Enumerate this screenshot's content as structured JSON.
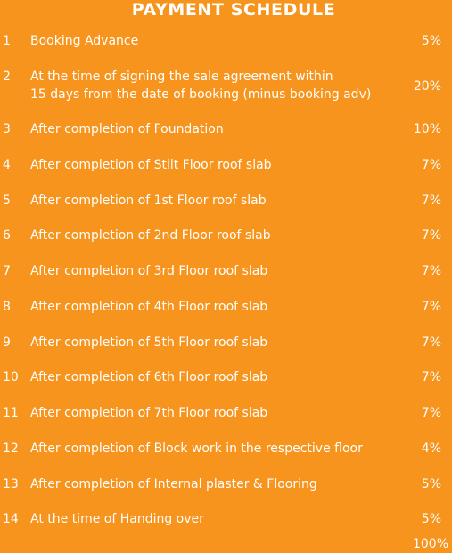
{
  "title": "PAYMENT SCHEDULE",
  "items": [
    {
      "num": "1",
      "lines": [
        "Booking Advance"
      ],
      "pct": "5%"
    },
    {
      "num": "2",
      "lines": [
        "At the time of signing the sale agreement  within",
        "15 days from the date of booking  (minus booking adv)"
      ],
      "pct": "20%"
    },
    {
      "num": "3",
      "lines": [
        "After completion of Foundation"
      ],
      "pct": "10%"
    },
    {
      "num": "4",
      "lines": [
        "After completion of Stilt Floor roof slab"
      ],
      "pct": "7%"
    },
    {
      "num": "5",
      "lines": [
        "After completion of 1st Floor roof slab"
      ],
      "pct": "7%"
    },
    {
      "num": "6",
      "lines": [
        "After completion of 2nd Floor roof slab"
      ],
      "pct": "7%"
    },
    {
      "num": "7",
      "lines": [
        "After completion of 3rd Floor roof slab"
      ],
      "pct": "7%"
    },
    {
      "num": "8",
      "lines": [
        "After completion of 4th Floor roof slab"
      ],
      "pct": "7%"
    },
    {
      "num": "9",
      "lines": [
        "After completion of 5th Floor roof slab"
      ],
      "pct": "7%"
    },
    {
      "num": "10",
      "lines": [
        "After completion of 6th Floor roof slab"
      ],
      "pct": "7%"
    },
    {
      "num": "11",
      "lines": [
        "After completion of 7th Floor  roof slab"
      ],
      "pct": "7%"
    },
    {
      "num": "12",
      "lines": [
        "After completion of Block work in the respective floor"
      ],
      "pct": "4%"
    },
    {
      "num": "13",
      "lines": [
        "After completion of Internal plaster & Flooring"
      ],
      "pct": "5%"
    },
    {
      "num": "14",
      "lines": [
        "At the time of  Handing over"
      ],
      "pct": "5%"
    }
  ],
  "total": "100%",
  "colors": {
    "background": "#F7941D",
    "text": "#ffffff"
  }
}
